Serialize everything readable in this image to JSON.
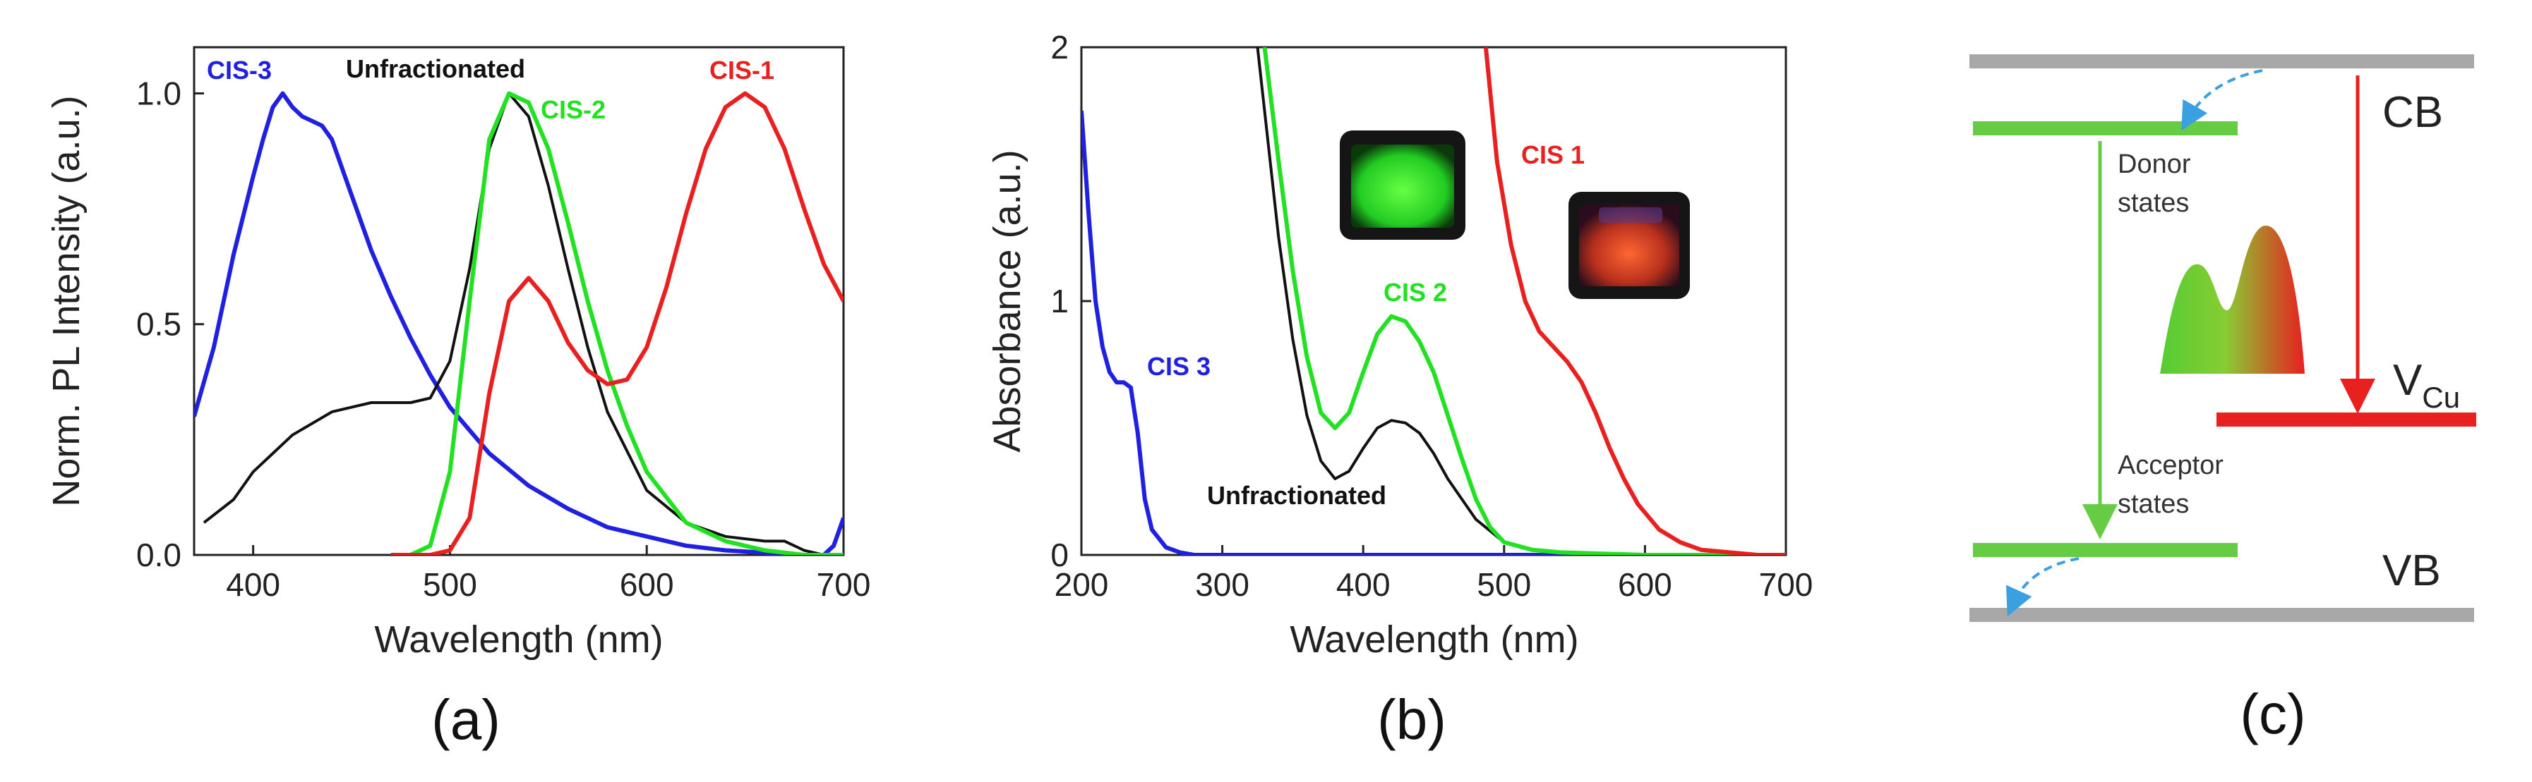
{
  "chart_data": [
    {
      "type": "line",
      "panel_label": "(a)",
      "title": "",
      "xlabel": "Wavelength (nm)",
      "ylabel": "Norm. PL Intensity (a.u.)",
      "xlim": [
        370,
        700
      ],
      "ylim": [
        0,
        1.1
      ],
      "xticks": [
        400,
        500,
        600,
        700
      ],
      "yticks": [
        0.0,
        0.5,
        1.0
      ],
      "xtick_labels": [
        "400",
        "500",
        "600",
        "700"
      ],
      "ytick_labels": [
        "0.0",
        "0.5",
        "1.0"
      ],
      "series": [
        {
          "name": "CIS-3",
          "color": "#2020e0",
          "label": "CIS-3",
          "x": [
            370,
            380,
            390,
            400,
            405,
            410,
            415,
            420,
            425,
            430,
            435,
            440,
            450,
            460,
            470,
            480,
            490,
            500,
            520,
            540,
            560,
            580,
            600,
            620,
            640,
            660,
            680,
            690,
            695,
            700
          ],
          "y": [
            0.3,
            0.45,
            0.65,
            0.82,
            0.9,
            0.97,
            1.0,
            0.97,
            0.95,
            0.94,
            0.93,
            0.9,
            0.78,
            0.66,
            0.56,
            0.47,
            0.39,
            0.32,
            0.22,
            0.15,
            0.1,
            0.06,
            0.04,
            0.02,
            0.01,
            0.005,
            0.0,
            0.0,
            0.02,
            0.08
          ]
        },
        {
          "name": "Unfractionated",
          "color": "#111111",
          "label": "Unfractionated",
          "x": [
            375,
            390,
            400,
            410,
            420,
            440,
            460,
            480,
            490,
            500,
            510,
            520,
            530,
            540,
            550,
            560,
            570,
            580,
            600,
            620,
            640,
            660,
            670,
            680,
            690,
            700
          ],
          "y": [
            0.07,
            0.12,
            0.18,
            0.22,
            0.26,
            0.31,
            0.33,
            0.33,
            0.34,
            0.42,
            0.62,
            0.88,
            1.0,
            0.95,
            0.8,
            0.62,
            0.45,
            0.31,
            0.14,
            0.07,
            0.04,
            0.03,
            0.03,
            0.01,
            0.0,
            0.0
          ]
        },
        {
          "name": "CIS-2",
          "color": "#22e022",
          "label": "CIS-2",
          "x": [
            470,
            480,
            490,
            500,
            510,
            520,
            530,
            540,
            550,
            560,
            570,
            580,
            590,
            600,
            620,
            640,
            660,
            680,
            700
          ],
          "y": [
            0.0,
            0.0,
            0.02,
            0.18,
            0.55,
            0.9,
            1.0,
            0.98,
            0.88,
            0.72,
            0.55,
            0.4,
            0.28,
            0.18,
            0.07,
            0.03,
            0.01,
            0.0,
            0.0
          ]
        },
        {
          "name": "CIS-1",
          "color": "#e82020",
          "label": "CIS-1",
          "x": [
            470,
            480,
            490,
            500,
            510,
            520,
            530,
            540,
            550,
            560,
            570,
            580,
            590,
            600,
            610,
            620,
            630,
            640,
            650,
            660,
            670,
            680,
            690,
            700
          ],
          "y": [
            0.0,
            0.0,
            0.0,
            0.01,
            0.08,
            0.35,
            0.55,
            0.6,
            0.55,
            0.46,
            0.4,
            0.37,
            0.38,
            0.45,
            0.58,
            0.74,
            0.88,
            0.97,
            1.0,
            0.97,
            0.88,
            0.75,
            0.63,
            0.55
          ]
        }
      ]
    },
    {
      "type": "line",
      "panel_label": "(b)",
      "title": "",
      "xlabel": "Wavelength (nm)",
      "ylabel": "Absorbance (a.u.)",
      "xlim": [
        200,
        700
      ],
      "ylim": [
        0,
        2
      ],
      "xticks": [
        200,
        300,
        400,
        500,
        600,
        700
      ],
      "yticks": [
        0,
        1,
        2
      ],
      "xtick_labels": [
        "200",
        "300",
        "400",
        "500",
        "600",
        "700"
      ],
      "ytick_labels": [
        "0",
        "1",
        "2"
      ],
      "series": [
        {
          "name": "CIS 3",
          "color": "#2020e0",
          "label": "CIS 3",
          "x": [
            200,
            205,
            210,
            215,
            220,
            225,
            230,
            235,
            240,
            245,
            250,
            260,
            270,
            280,
            300,
            350,
            400,
            700
          ],
          "y": [
            1.75,
            1.35,
            1.0,
            0.82,
            0.72,
            0.68,
            0.68,
            0.66,
            0.48,
            0.22,
            0.1,
            0.03,
            0.01,
            0.0,
            0.0,
            0.0,
            0.0,
            0.0
          ]
        },
        {
          "name": "Unfractionated",
          "color": "#111111",
          "label": "Unfractionated",
          "x": [
            325,
            340,
            350,
            360,
            370,
            380,
            390,
            400,
            410,
            420,
            430,
            440,
            450,
            460,
            480,
            500,
            520,
            540,
            600,
            700
          ],
          "y": [
            2.0,
            1.25,
            0.85,
            0.55,
            0.37,
            0.3,
            0.33,
            0.42,
            0.5,
            0.53,
            0.52,
            0.48,
            0.4,
            0.3,
            0.14,
            0.05,
            0.02,
            0.01,
            0.0,
            0.0
          ]
        },
        {
          "name": "CIS 2",
          "color": "#22e022",
          "label": "CIS 2",
          "x": [
            330,
            340,
            350,
            360,
            370,
            380,
            390,
            400,
            410,
            420,
            430,
            440,
            450,
            460,
            470,
            480,
            490,
            500,
            520,
            540,
            600,
            700
          ],
          "y": [
            2.0,
            1.55,
            1.12,
            0.78,
            0.56,
            0.5,
            0.56,
            0.72,
            0.87,
            0.94,
            0.92,
            0.84,
            0.72,
            0.55,
            0.38,
            0.22,
            0.11,
            0.05,
            0.02,
            0.01,
            0.0,
            0.0
          ]
        },
        {
          "name": "CIS 1",
          "color": "#e82020",
          "label": "CIS 1",
          "x": [
            487,
            495,
            505,
            515,
            525,
            535,
            545,
            555,
            565,
            575,
            585,
            595,
            610,
            625,
            640,
            660,
            680,
            700
          ],
          "y": [
            2.0,
            1.55,
            1.22,
            1.0,
            0.88,
            0.82,
            0.76,
            0.68,
            0.56,
            0.42,
            0.3,
            0.2,
            0.1,
            0.05,
            0.02,
            0.01,
            0.0,
            0.0
          ]
        }
      ]
    }
  ],
  "panel_a": {
    "label": "(a)"
  },
  "panel_b": {
    "label": "(b)"
  },
  "panel_c": {
    "label": "(c)",
    "cb_label": "CB",
    "vb_label": "VB",
    "vcu_main": "V",
    "vcu_sub": "Cu",
    "donor_line1": "Donor",
    "donor_line2": "states",
    "acceptor_line1": "Acceptor",
    "acceptor_line2": "states",
    "colors": {
      "band": "#a8a8a8",
      "green": "#66cc44",
      "red": "#e82020",
      "blue": "#3aa0e0"
    }
  }
}
